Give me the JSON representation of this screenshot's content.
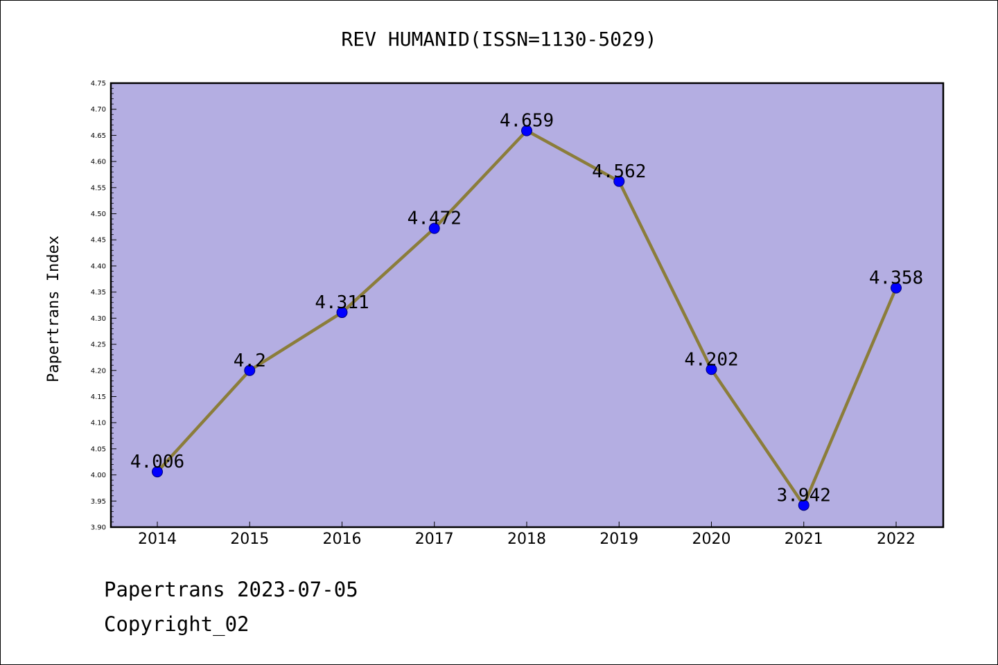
{
  "footer": {
    "line1": "Papertrans 2023-07-05",
    "line2": "Copyright_02"
  },
  "chart_data": {
    "type": "line",
    "title": "REV HUMANID(ISSN=1130-5029)",
    "xlabel": "",
    "ylabel": "Papertrans Index",
    "categories": [
      "2014",
      "2015",
      "2016",
      "2017",
      "2018",
      "2019",
      "2020",
      "2021",
      "2022"
    ],
    "series": [
      {
        "values": [
          4.006,
          4.2,
          4.311,
          4.472,
          4.659,
          4.562,
          4.202,
          3.942,
          4.358
        ],
        "data_labels": [
          "4.006",
          "4.2",
          "4.311",
          "4.472",
          "4.659",
          "4.562",
          "4.202",
          "3.942",
          "4.358"
        ]
      }
    ],
    "ylim": [
      3.9,
      4.75
    ],
    "yticks": [
      "3.90",
      "3.95",
      "4.00",
      "4.05",
      "4.10",
      "4.15",
      "4.20",
      "4.25",
      "4.30",
      "4.35",
      "4.40",
      "4.45",
      "4.50",
      "4.55",
      "4.60",
      "4.65",
      "4.70",
      "4.75"
    ],
    "grid": false,
    "colors": {
      "plot_background": "#b4aee2",
      "line": "#8b7d3a",
      "marker_fill": "#0000ff",
      "marker_edge": "#00007a",
      "axes": "#000000"
    }
  }
}
